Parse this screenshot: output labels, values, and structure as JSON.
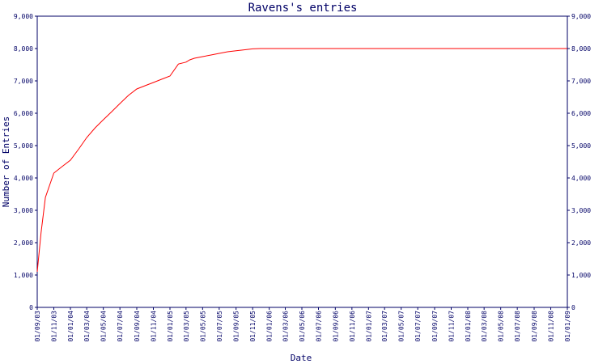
{
  "chart_data": {
    "type": "line",
    "title": "Ravens's entries",
    "xlabel": "Date",
    "ylabel": "Number of Entries",
    "ylim": [
      0,
      9000
    ],
    "y_ticks": [
      "0",
      "1,000",
      "2,000",
      "3,000",
      "4,000",
      "5,000",
      "6,000",
      "7,000",
      "8,000",
      "9,000"
    ],
    "x_ticks": [
      "01/09/03",
      "01/11/03",
      "01/01/04",
      "01/03/04",
      "01/05/04",
      "01/07/04",
      "01/09/04",
      "01/11/04",
      "01/01/05",
      "01/03/05",
      "01/05/05",
      "01/07/05",
      "01/09/05",
      "01/11/05",
      "01/01/06",
      "01/03/06",
      "01/05/06",
      "01/07/06",
      "01/09/06",
      "01/11/06",
      "01/01/07",
      "01/03/07",
      "01/05/07",
      "01/07/07",
      "01/09/07",
      "01/11/07",
      "01/01/08",
      "01/03/08",
      "01/05/08",
      "01/07/08",
      "01/09/08",
      "01/11/08",
      "01/01/09"
    ],
    "grid": false,
    "colors": {
      "line": "#ff0000",
      "axes": "#000066",
      "text": "#000066",
      "background": "#ffffff"
    },
    "series": [
      {
        "x": [
          "01/09/03",
          "15/09/03",
          "01/10/03",
          "01/11/03",
          "01/12/03",
          "01/01/04",
          "01/02/04",
          "01/03/04",
          "01/04/04",
          "01/05/04",
          "01/06/04",
          "01/07/04",
          "01/08/04",
          "01/09/04",
          "01/10/04",
          "01/11/04",
          "01/12/04",
          "01/01/05",
          "01/02/05",
          "01/03/05",
          "15/03/05",
          "01/04/05",
          "01/05/05",
          "01/06/05",
          "01/07/05",
          "01/08/05",
          "01/09/05",
          "01/10/05",
          "01/11/05",
          "01/12/05",
          "01/01/06",
          "01/02/06",
          "01/01/07",
          "01/01/08",
          "01/01/09"
        ],
        "y": [
          1100,
          2300,
          3400,
          4150,
          4350,
          4550,
          4900,
          5250,
          5550,
          5800,
          6050,
          6300,
          6550,
          6750,
          6850,
          6950,
          7050,
          7150,
          7520,
          7580,
          7650,
          7700,
          7750,
          7800,
          7850,
          7900,
          7930,
          7960,
          7990,
          8000,
          8000,
          8000,
          8000,
          8000,
          8000
        ]
      }
    ]
  }
}
